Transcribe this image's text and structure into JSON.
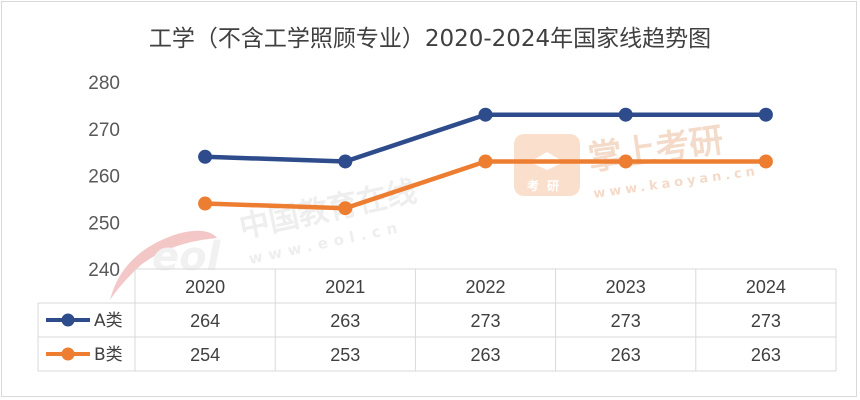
{
  "chart_data": {
    "type": "line",
    "title": "工学（不含工学照顾专业）2020-2024年国家线趋势图",
    "categories": [
      "2020",
      "2021",
      "2022",
      "2023",
      "2024"
    ],
    "series": [
      {
        "name": "A类",
        "values": [
          264,
          263,
          273,
          273,
          273
        ],
        "color": "#2e4c8c"
      },
      {
        "name": "B类",
        "values": [
          254,
          253,
          263,
          263,
          263
        ],
        "color": "#ed7d31"
      }
    ],
    "yticks": [
      "240",
      "250",
      "260",
      "270",
      "280"
    ],
    "ylim": [
      240,
      280
    ],
    "grid": false,
    "legend": "data-table"
  },
  "watermarks": {
    "eol_logo": "eol",
    "eol_cn": "中国教育在线",
    "eol_url": "www.eol.cn",
    "kaoyan_cn": "掌上考研",
    "kaoyan_badge": "考研",
    "kaoyan_url": "www.kaoyan.cn"
  }
}
